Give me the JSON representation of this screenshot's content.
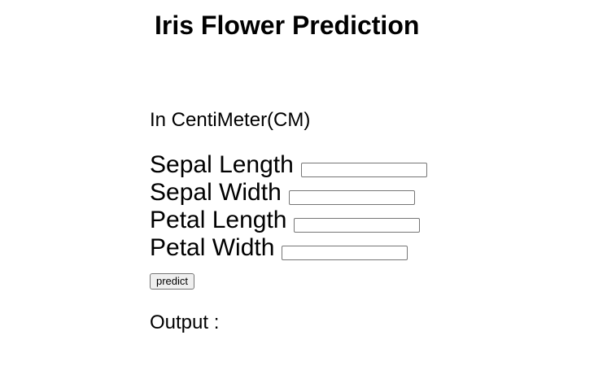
{
  "page": {
    "title": "Iris Flower Prediction",
    "unit_note": "In CentiMeter(CM)"
  },
  "form": {
    "fields": [
      {
        "label": "Sepal Length",
        "value": ""
      },
      {
        "label": "Sepal Width",
        "value": ""
      },
      {
        "label": "Petal Length",
        "value": ""
      },
      {
        "label": "Petal Width",
        "value": ""
      }
    ],
    "submit_label": "predict"
  },
  "output": {
    "label": "Output :",
    "value": ""
  }
}
